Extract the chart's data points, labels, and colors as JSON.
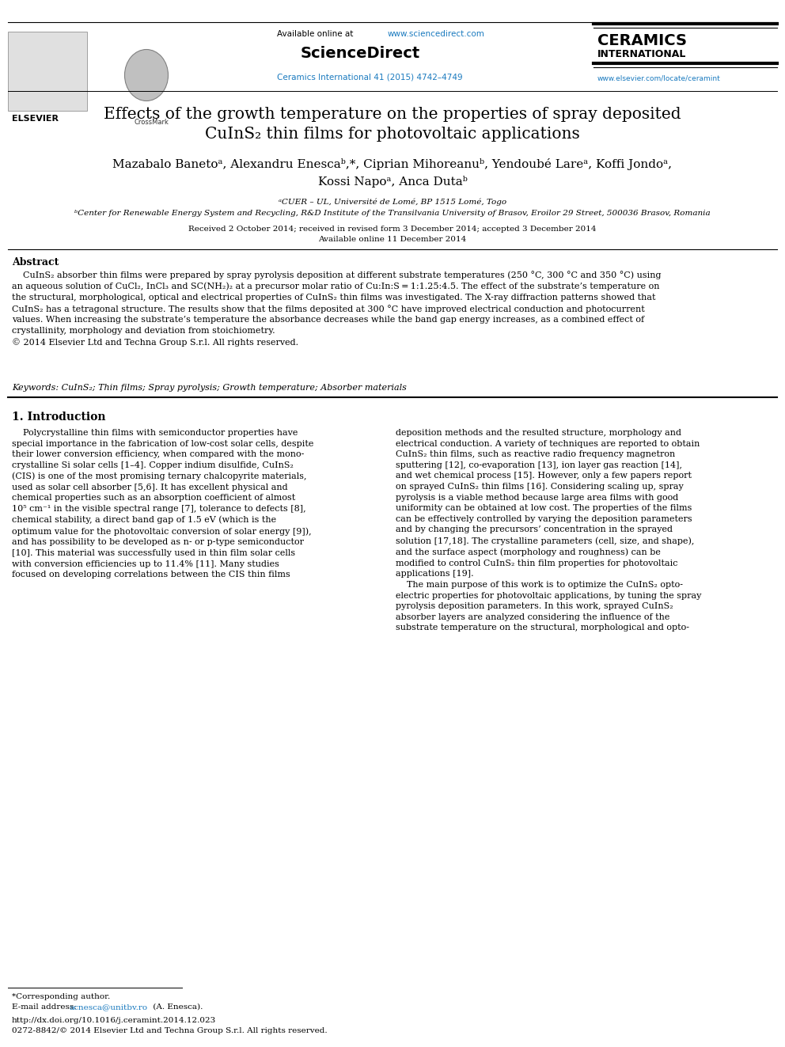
{
  "bg_color": "#ffffff",
  "available_online_text": "Available online at ",
  "available_online_url": "www.sciencedirect.com",
  "sciencedirect_text": "ScienceDirect",
  "journal_line": "Ceramics International 41 (2015) 4742–4749",
  "ceramics_title": "CERAMICS",
  "ceramics_subtitle": "INTERNATIONAL",
  "ceramics_url": "www.elsevier.com/locate/ceramint",
  "elsevier_text": "ELSEVIER",
  "paper_title_line1": "Effects of the growth temperature on the properties of spray deposited",
  "paper_title_line2": "CuInS₂ thin films for photovoltaic applications",
  "authors_line1": "Mazabalo Banetoᵃ, Alexandru Enescaᵇ,*, Ciprian Mihoreanuᵇ, Yendoubé Lareᵃ, Koffi Jondoᵃ,",
  "authors_line2": "Kossi Napoᵃ, Anca Dutaᵇ",
  "affil_a": "ᵃCUER – UL, Université de Lomé, BP 1515 Lomé, Togo",
  "affil_b": "ᵇCenter for Renewable Energy System and Recycling, R&D Institute of the Transilvania University of Brasov, Eroilor 29 Street, 500036 Brasov, Romania",
  "received_text": "Received 2 October 2014; received in revised form 3 December 2014; accepted 3 December 2014",
  "available_online_paper": "Available online 11 December 2014",
  "abstract_title": "Abstract",
  "abstract_body": "    CuInS₂ absorber thin films were prepared by spray pyrolysis deposition at different substrate temperatures (250 °C, 300 °C and 350 °C) using\nan aqueous solution of CuCl₂, InCl₃ and SC(NH₂)₂ at a precursor molar ratio of Cu:In:S = 1:1.25:4.5. The effect of the substrate’s temperature on\nthe structural, morphological, optical and electrical properties of CuInS₂ thin films was investigated. The X-ray diffraction patterns showed that\nCuInS₂ has a tetragonal structure. The results show that the films deposited at 300 °C have improved electrical conduction and photocurrent\nvalues. When increasing the substrate’s temperature the absorbance decreases while the band gap energy increases, as a combined effect of\ncrystallinity, morphology and deviation from stoichiometry.\n© 2014 Elsevier Ltd and Techna Group S.r.l. All rights reserved.",
  "keywords_text": "Keywords: CuInS₂; Thin films; Spray pyrolysis; Growth temperature; Absorber materials",
  "intro_title": "1. Introduction",
  "intro_col1": "    Polycrystalline thin films with semiconductor properties have\nspecial importance in the fabrication of low-cost solar cells, despite\ntheir lower conversion efficiency, when compared with the mono-\ncrystalline Si solar cells [1–4]. Copper indium disulfide, CuInS₂\n(CIS) is one of the most promising ternary chalcopyrite materials,\nused as solar cell absorber [5,6]. It has excellent physical and\nchemical properties such as an absorption coefficient of almost\n10⁵ cm⁻¹ in the visible spectral range [7], tolerance to defects [8],\nchemical stability, a direct band gap of 1.5 eV (which is the\noptimum value for the photovoltaic conversion of solar energy [9]),\nand has possibility to be developed as n- or p-type semiconductor\n[10]. This material was successfully used in thin film solar cells\nwith conversion efficiencies up to 11.4% [11]. Many studies\nfocused on developing correlations between the CIS thin films",
  "intro_col2": "deposition methods and the resulted structure, morphology and\nelectrical conduction. A variety of techniques are reported to obtain\nCuInS₂ thin films, such as reactive radio frequency magnetron\nsputtering [12], co-evaporation [13], ion layer gas reaction [14],\nand wet chemical process [15]. However, only a few papers report\non sprayed CuInS₂ thin films [16]. Considering scaling up, spray\npyrolysis is a viable method because large area films with good\nuniformity can be obtained at low cost. The properties of the films\ncan be effectively controlled by varying the deposition parameters\nand by changing the precursors’ concentration in the sprayed\nsolution [17,18]. The crystalline parameters (cell, size, and shape),\nand the surface aspect (morphology and roughness) can be\nmodified to control CuInS₂ thin film properties for photovoltaic\napplications [19].\n    The main purpose of this work is to optimize the CuInS₂ opto-\nelectric properties for photovoltaic applications, by tuning the spray\npyrolysis deposition parameters. In this work, sprayed CuInS₂\nabsorber layers are analyzed considering the influence of the\nsubstrate temperature on the structural, morphological and opto-",
  "footnote_star": "*Corresponding author.",
  "footnote_email_label": "E-mail address: ",
  "footnote_email": "acnesca@unitbv.ro",
  "footnote_email_suffix": " (A. Enesca).",
  "doi_text": "http://dx.doi.org/10.1016/j.ceramint.2014.12.023",
  "issn_text": "0272-8842/© 2014 Elsevier Ltd and Techna Group S.r.l. All rights reserved.",
  "url_color": "#1a7abf",
  "text_color": "#000000"
}
